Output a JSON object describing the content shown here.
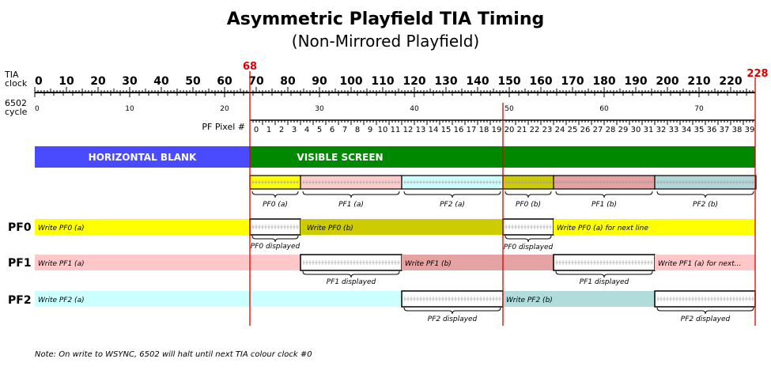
{
  "title": "Asymmetric Playfield TIA Timing",
  "subtitle": "(Non-Mirrored Playfield)",
  "axes": {
    "tia_clock_label_1": "TIA",
    "tia_clock_label_2": "clock",
    "cycle_label_1": "6502",
    "cycle_label_2": "cycle",
    "pf_pixel_label": "PF Pixel #",
    "tia_ticks": [
      "0",
      "10",
      "20",
      "30",
      "40",
      "50",
      "60",
      "70",
      "80",
      "90",
      "100",
      "110",
      "120",
      "130",
      "140",
      "150",
      "160",
      "170",
      "180",
      "190",
      "200",
      "210",
      "220"
    ],
    "cycle_ticks": [
      "0",
      "10",
      "20",
      "30",
      "40",
      "50",
      "60",
      "70"
    ],
    "pf_pixels": [
      "0",
      "1",
      "2",
      "3",
      "4",
      "5",
      "6",
      "7",
      "8",
      "9",
      "10",
      "11",
      "12",
      "13",
      "14",
      "15",
      "16",
      "17",
      "18",
      "19",
      "20",
      "21",
      "22",
      "23",
      "24",
      "25",
      "26",
      "27",
      "28",
      "29",
      "30",
      "31",
      "32",
      "33",
      "34",
      "35",
      "36",
      "37",
      "38",
      "39"
    ],
    "marker_68": "68",
    "marker_228": "228"
  },
  "bands": {
    "hblank": "HORIZONTAL BLANK",
    "visible": "VISIBLE SCREEN"
  },
  "segments": [
    {
      "label": "PF0 (a)",
      "color": "#ffff00"
    },
    {
      "label": "PF1 (a)",
      "color": "#ffcccc"
    },
    {
      "label": "PF2 (a)",
      "color": "#ccffff"
    },
    {
      "label": "PF0 (b)",
      "color": "#cccc00"
    },
    {
      "label": "PF1 (b)",
      "color": "#e8a0a0"
    },
    {
      "label": "PF2 (b)",
      "color": "#b0d8d8"
    }
  ],
  "rows": {
    "pf0": {
      "name": "PF0",
      "write_a": "Write PF0 (a)",
      "write_b": "Write PF0 (b)",
      "write_next": "Write PF0 (a) for next line",
      "displayed_1": "PF0 displayed",
      "displayed_2": "PF0 displayed"
    },
    "pf1": {
      "name": "PF1",
      "write_a": "Write PF1 (a)",
      "write_b": "Write PF1 (b)",
      "write_next": "Write PF1 (a) for next...",
      "displayed_1": "PF1 displayed",
      "displayed_2": "PF1 displayed"
    },
    "pf2": {
      "name": "PF2",
      "write_a": "Write PF2 (a)",
      "write_b": "Write PF2 (b)",
      "displayed_1": "PF2 displayed",
      "displayed_2": "PF2 displayed"
    }
  },
  "colors": {
    "hblank": "#4a4aff",
    "visible": "#008800",
    "pf0_light": "#ffff00",
    "pf0_dark": "#cccc00",
    "pf1_light": "#ffc8c8",
    "pf1_dark": "#e6a3a3",
    "pf2_light": "#ccffff",
    "pf2_dark": "#b0dcdc",
    "marker": "#dd0000"
  },
  "note": "Note: On write to WSYNC, 6502 will halt until next TIA colour clock #0"
}
